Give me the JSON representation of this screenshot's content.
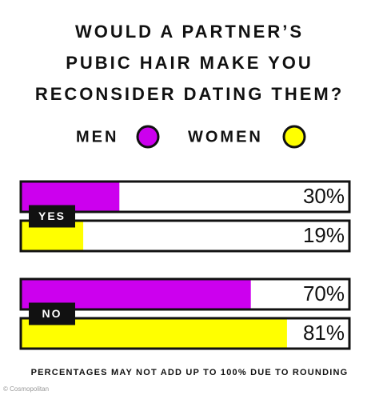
{
  "chart_data": {
    "type": "bar",
    "orientation": "horizontal",
    "title": "WOULD A PARTNER’S\nPUBIC HAIR MAKE YOU\nRECONSIDER DATING THEM?",
    "categories": [
      "YES",
      "NO"
    ],
    "series": [
      {
        "name": "MEN",
        "color": "#cc00ee",
        "values": [
          30,
          70
        ],
        "value_labels": [
          "30%",
          "70%"
        ]
      },
      {
        "name": "WOMEN",
        "color": "#ffff00",
        "values": [
          19,
          81
        ],
        "value_labels": [
          "19%",
          "81%"
        ]
      }
    ],
    "xlim": [
      0,
      100
    ],
    "footnote": "PERCENTAGES MAY NOT ADD UP TO 100% DUE TO ROUNDING",
    "credit": "© Cosmopolitan"
  }
}
